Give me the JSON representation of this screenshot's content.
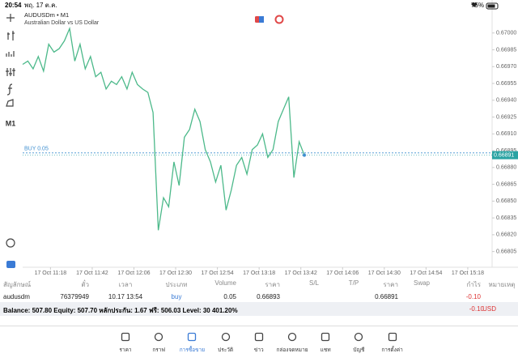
{
  "status_bar": {
    "time": "20:54",
    "date": "พฤ. 17 ต.ค.",
    "battery": "75%"
  },
  "toolbar": {
    "timeframe": "M1"
  },
  "chart_data": {
    "type": "line",
    "title": "AUDUSDm • M1",
    "subtitle": "Australian Dollar vs US Dollar",
    "x": [
      "17 Oct 11:02",
      "17 Oct 11:05",
      "17 Oct 11:08",
      "17 Oct 11:11",
      "17 Oct 11:14",
      "17 Oct 11:17",
      "17 Oct 11:20",
      "17 Oct 11:23",
      "17 Oct 11:26",
      "17 Oct 11:29",
      "17 Oct 11:32",
      "17 Oct 11:35",
      "17 Oct 11:38",
      "17 Oct 11:41",
      "17 Oct 11:44",
      "17 Oct 11:47",
      "17 Oct 11:50",
      "17 Oct 11:53",
      "17 Oct 11:56",
      "17 Oct 11:59",
      "17 Oct 12:02",
      "17 Oct 12:05",
      "17 Oct 12:08",
      "17 Oct 12:11",
      "17 Oct 12:14",
      "17 Oct 12:17",
      "17 Oct 12:20",
      "17 Oct 12:23",
      "17 Oct 12:26",
      "17 Oct 12:29",
      "17 Oct 12:32",
      "17 Oct 12:35",
      "17 Oct 12:38",
      "17 Oct 12:41",
      "17 Oct 12:44",
      "17 Oct 12:47",
      "17 Oct 12:50",
      "17 Oct 12:53",
      "17 Oct 12:56",
      "17 Oct 12:59",
      "17 Oct 13:02",
      "17 Oct 13:05",
      "17 Oct 13:08",
      "17 Oct 13:11",
      "17 Oct 13:14",
      "17 Oct 13:17",
      "17 Oct 13:20",
      "17 Oct 13:23",
      "17 Oct 13:26",
      "17 Oct 13:29",
      "17 Oct 13:32",
      "17 Oct 13:35",
      "17 Oct 13:38",
      "17 Oct 13:41",
      "17 Oct 13:44"
    ],
    "series": [
      {
        "color": "#4cb98a",
        "values": [
          0.66972,
          0.66975,
          0.66968,
          0.66979,
          0.66966,
          0.6699,
          0.66983,
          0.66986,
          0.66993,
          0.67004,
          0.66975,
          0.6699,
          0.66968,
          0.66979,
          0.66961,
          0.66965,
          0.6695,
          0.66957,
          0.66954,
          0.66961,
          0.6695,
          0.66965,
          0.66954,
          0.6695,
          0.66947,
          0.66929,
          0.66824,
          0.66853,
          0.66845,
          0.66885,
          0.66864,
          0.66907,
          0.66914,
          0.66932,
          0.66921,
          0.66896,
          0.66885,
          0.66867,
          0.66882,
          0.66842,
          0.6686,
          0.66882,
          0.66889,
          0.66874,
          0.66896,
          0.669,
          0.6691,
          0.66889,
          0.66896,
          0.66921,
          0.66932,
          0.66943,
          0.66871,
          0.66903,
          0.66891
        ]
      }
    ],
    "xlim": [
      "17 Oct 11:02",
      "17 Oct 15:32"
    ],
    "xticks": [
      "17 Oct 11:18",
      "17 Oct 11:42",
      "17 Oct 12:06",
      "17 Oct 12:30",
      "17 Oct 12:54",
      "17 Oct 13:18",
      "17 Oct 13:42",
      "17 Oct 14:06",
      "17 Oct 14:30",
      "17 Oct 14:54",
      "17 Oct 15:18"
    ],
    "ylim": [
      0.66791,
      0.67028
    ],
    "yticks": [
      {
        "value": 0.67,
        "label": "0.67000"
      },
      0.66985,
      {
        "value": 0.6697,
        "label": "0.66970"
      },
      0.66955,
      {
        "value": 0.6694,
        "label": "0.66940"
      },
      0.66925,
      {
        "value": 0.6691,
        "label": "0.66910"
      },
      0.66895,
      {
        "value": 0.6688,
        "label": "0.66880"
      },
      0.66865,
      {
        "value": 0.6685,
        "label": "0.66850"
      },
      0.66835,
      {
        "value": 0.6682,
        "label": "0.66820"
      },
      0.66805
    ],
    "position_line": {
      "label": "BUY 0.05",
      "value": 0.66893,
      "color": "#3f8fd0"
    },
    "current_price": 0.66891,
    "current_price_color": "#2aa3a3"
  },
  "positions": {
    "headers": [
      "สัญลักษณ์",
      "ตั๋ว",
      "เวลา",
      "ประเภท",
      "Volume",
      "ราคา",
      "S/L",
      "T/P",
      "ราคา",
      "Swap",
      "กำไร",
      "หมายเหตุ"
    ],
    "rows": [
      [
        "audusdm",
        "76379949",
        "10.17 13:54",
        "buy",
        "0.05",
        "0.66893",
        "",
        "",
        "0.66891",
        "",
        "-0.10",
        ""
      ]
    ]
  },
  "summary": {
    "text": "Balance: 507.80 Equity: 507.70 หลักประกัน: 1.67 ฟรี: 506.03 Level: 30 401.20%",
    "profit": "-0.10",
    "currency": "USD"
  },
  "nav": {
    "items": [
      "ราคา",
      "กราฟ",
      "การซื้อขาย",
      "ประวัติ",
      "ข่าว",
      "กล่องจดหมาย",
      "แชท",
      "บัญชี",
      "การตั้งค่า"
    ],
    "active": 2
  }
}
